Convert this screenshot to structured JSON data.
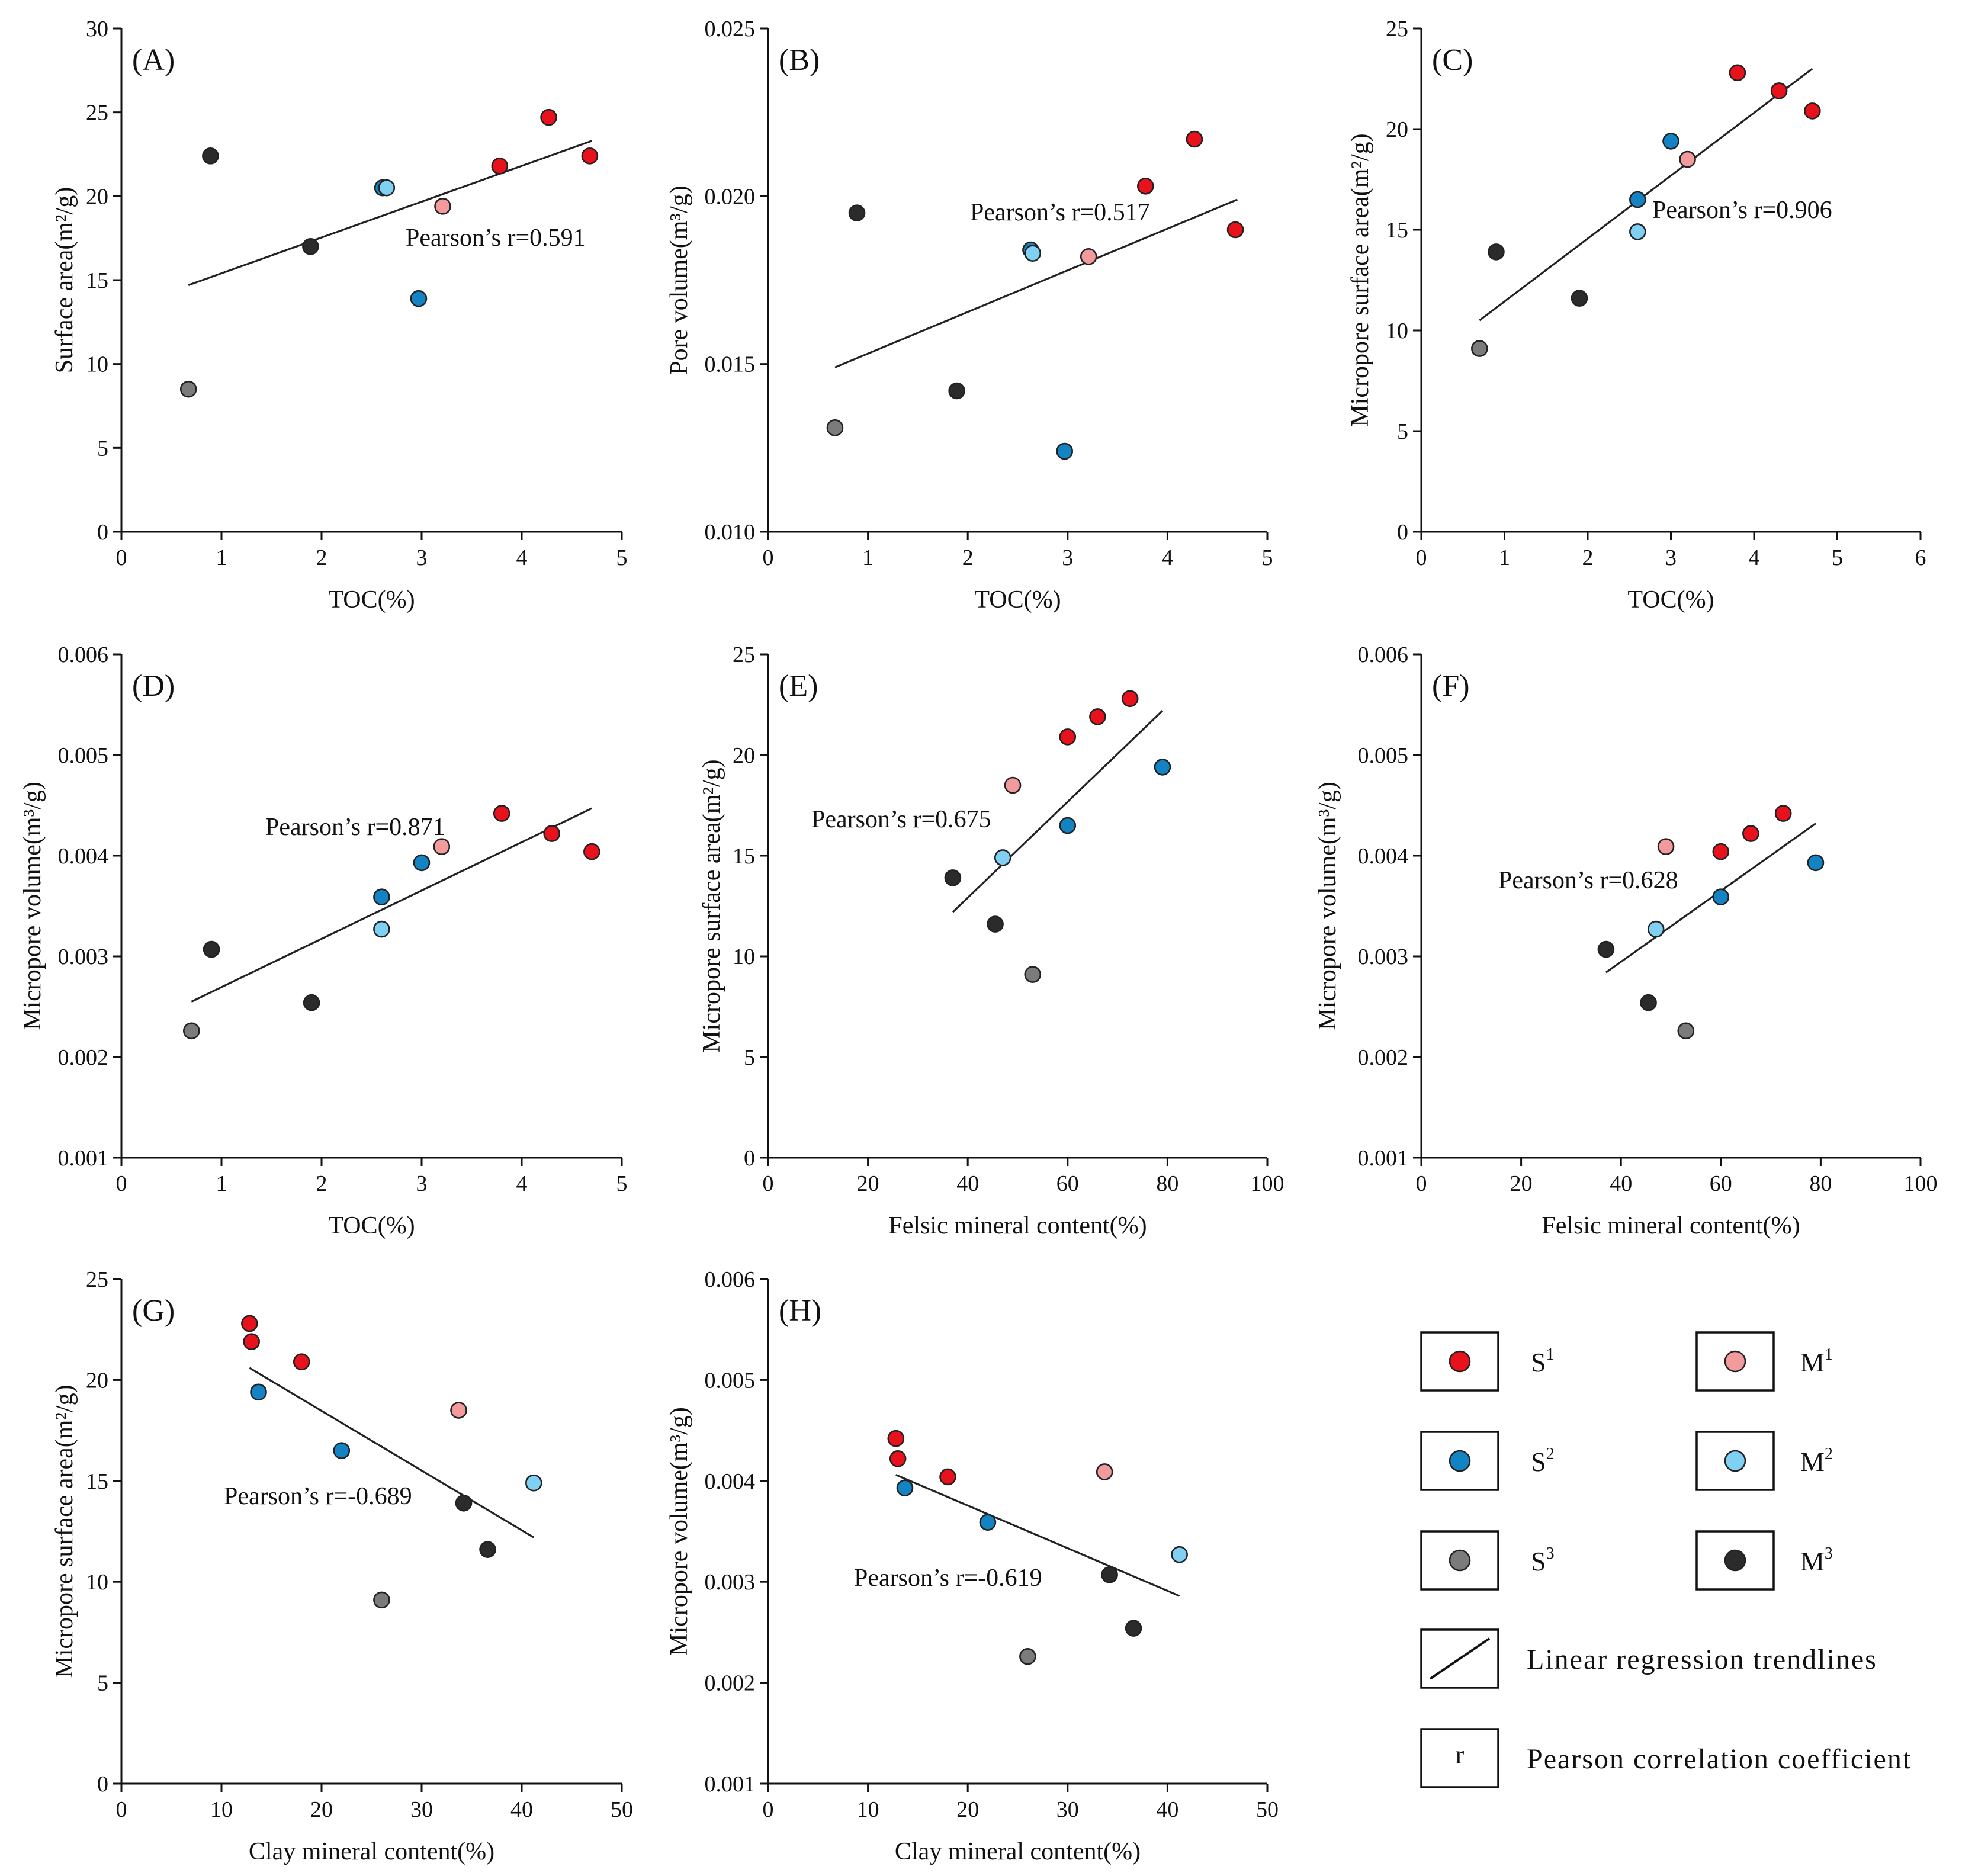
{
  "colors": {
    "S1": "#e8121c",
    "S2": "#1383c4",
    "S3": "#7b7b7b",
    "M1": "#f39a9c",
    "M2": "#7fd0f2",
    "M3": "#2b2b2b"
  },
  "legend": {
    "items": [
      {
        "group": "S1",
        "base": "S",
        "sup": "1"
      },
      {
        "group": "M1",
        "base": "M",
        "sup": "1"
      },
      {
        "group": "S2",
        "base": "S",
        "sup": "2"
      },
      {
        "group": "M2",
        "base": "M",
        "sup": "2"
      },
      {
        "group": "S3",
        "base": "S",
        "sup": "3"
      },
      {
        "group": "M3",
        "base": "M",
        "sup": "3"
      }
    ],
    "trendline_label": "Linear regression trendlines",
    "r_symbol": "r",
    "r_label": "Pearson correlation coefficient"
  },
  "chart_data": [
    {
      "panel": "(A)",
      "type": "scatter",
      "xlabel": "TOC(%)",
      "ylabel": "Surface area(m²/g)",
      "xlim": [
        0,
        5
      ],
      "ylim": [
        0,
        30
      ],
      "xticks": [
        "0",
        "1",
        "2",
        "3",
        "4",
        "5"
      ],
      "yticks": [
        "0",
        "5",
        "10",
        "15",
        "20",
        "25",
        "30"
      ],
      "annotation": "Pearson’s r=0.591",
      "trendline": [
        [
          0.67,
          14.7
        ],
        [
          4.7,
          23.3
        ]
      ],
      "points": [
        {
          "x": 0.67,
          "y": 8.5,
          "group": "S3"
        },
        {
          "x": 0.89,
          "y": 22.4,
          "group": "M3"
        },
        {
          "x": 1.89,
          "y": 17.0,
          "group": "M3"
        },
        {
          "x": 2.61,
          "y": 20.5,
          "group": "S2"
        },
        {
          "x": 2.65,
          "y": 20.5,
          "group": "M2"
        },
        {
          "x": 2.97,
          "y": 13.9,
          "group": "S2"
        },
        {
          "x": 3.21,
          "y": 19.4,
          "group": "M1"
        },
        {
          "x": 3.78,
          "y": 21.8,
          "group": "S1"
        },
        {
          "x": 4.27,
          "y": 24.7,
          "group": "S1"
        },
        {
          "x": 4.68,
          "y": 22.4,
          "group": "S1"
        }
      ]
    },
    {
      "panel": "(B)",
      "type": "scatter",
      "xlabel": "TOC(%)",
      "ylabel": "Pore volume(m³/g)",
      "xlim": [
        0,
        5
      ],
      "ylim": [
        0.01,
        0.025
      ],
      "xticks": [
        "0",
        "1",
        "2",
        "3",
        "4",
        "5"
      ],
      "yticks": [
        "0.010",
        "0.015",
        "0.020",
        "0.025"
      ],
      "annotation": "Pearson’s r=0.517",
      "trendline": [
        [
          0.67,
          0.0149
        ],
        [
          4.7,
          0.0199
        ]
      ],
      "points": [
        {
          "x": 0.67,
          "y": 0.0131,
          "group": "S3"
        },
        {
          "x": 0.89,
          "y": 0.0195,
          "group": "M3"
        },
        {
          "x": 1.89,
          "y": 0.0142,
          "group": "M3"
        },
        {
          "x": 2.63,
          "y": 0.0184,
          "group": "S2"
        },
        {
          "x": 2.65,
          "y": 0.0183,
          "group": "M2"
        },
        {
          "x": 2.97,
          "y": 0.0124,
          "group": "S2"
        },
        {
          "x": 3.21,
          "y": 0.0182,
          "group": "M1"
        },
        {
          "x": 3.78,
          "y": 0.0203,
          "group": "S1"
        },
        {
          "x": 4.27,
          "y": 0.0217,
          "group": "S1"
        },
        {
          "x": 4.68,
          "y": 0.019,
          "group": "S1"
        }
      ]
    },
    {
      "panel": "(C)",
      "type": "scatter",
      "xlabel": "TOC(%)",
      "ylabel": "Micropore surface area(m²/g)",
      "xlim": [
        0,
        6
      ],
      "ylim": [
        0,
        25
      ],
      "xticks": [
        "0",
        "1",
        "2",
        "3",
        "4",
        "5",
        "6"
      ],
      "yticks": [
        "0",
        "5",
        "10",
        "15",
        "20",
        "25"
      ],
      "annotation": "Pearson’s r=0.906",
      "trendline": [
        [
          0.7,
          10.5
        ],
        [
          4.7,
          23.0
        ]
      ],
      "points": [
        {
          "x": 0.7,
          "y": 9.1,
          "group": "S3"
        },
        {
          "x": 0.9,
          "y": 13.9,
          "group": "M3"
        },
        {
          "x": 1.9,
          "y": 11.6,
          "group": "M3"
        },
        {
          "x": 2.6,
          "y": 16.5,
          "group": "S2"
        },
        {
          "x": 2.6,
          "y": 14.9,
          "group": "M2"
        },
        {
          "x": 3.0,
          "y": 19.4,
          "group": "S2"
        },
        {
          "x": 3.2,
          "y": 18.5,
          "group": "M1"
        },
        {
          "x": 3.8,
          "y": 22.8,
          "group": "S1"
        },
        {
          "x": 4.3,
          "y": 21.9,
          "group": "S1"
        },
        {
          "x": 4.7,
          "y": 20.9,
          "group": "S1"
        }
      ]
    },
    {
      "panel": "(D)",
      "type": "scatter",
      "xlabel": "TOC(%)",
      "ylabel": "Micropore volume(m³/g)",
      "xlim": [
        0,
        5
      ],
      "ylim": [
        0.001,
        0.006
      ],
      "xticks": [
        "0",
        "1",
        "2",
        "3",
        "4",
        "5"
      ],
      "yticks": [
        "0.001",
        "0.002",
        "0.003",
        "0.004",
        "0.005",
        "0.006"
      ],
      "annotation": "Pearson’s r=0.871",
      "trendline": [
        [
          0.7,
          0.00255
        ],
        [
          4.7,
          0.00447
        ]
      ],
      "points": [
        {
          "x": 0.7,
          "y": 0.00226,
          "group": "S3"
        },
        {
          "x": 0.9,
          "y": 0.00307,
          "group": "M3"
        },
        {
          "x": 1.9,
          "y": 0.00254,
          "group": "M3"
        },
        {
          "x": 2.6,
          "y": 0.00359,
          "group": "S2"
        },
        {
          "x": 2.6,
          "y": 0.00327,
          "group": "M2"
        },
        {
          "x": 3.0,
          "y": 0.00393,
          "group": "S2"
        },
        {
          "x": 3.2,
          "y": 0.00409,
          "group": "M1"
        },
        {
          "x": 3.8,
          "y": 0.00442,
          "group": "S1"
        },
        {
          "x": 4.3,
          "y": 0.00422,
          "group": "S1"
        },
        {
          "x": 4.7,
          "y": 0.00404,
          "group": "S1"
        }
      ]
    },
    {
      "panel": "(E)",
      "type": "scatter",
      "xlabel": "Felsic mineral content(%)",
      "ylabel": "Micropore surface area(m²/g)",
      "xlim": [
        0,
        100
      ],
      "ylim": [
        0,
        25
      ],
      "xticks": [
        "0",
        "20",
        "40",
        "60",
        "80",
        "100"
      ],
      "yticks": [
        "0",
        "5",
        "10",
        "15",
        "20",
        "25"
      ],
      "annotation": "Pearson’s r=0.675",
      "trendline": [
        [
          37,
          12.2
        ],
        [
          79,
          22.2
        ]
      ],
      "points": [
        {
          "x": 37.0,
          "y": 13.9,
          "group": "M3"
        },
        {
          "x": 45.5,
          "y": 11.6,
          "group": "M3"
        },
        {
          "x": 47.0,
          "y": 14.9,
          "group": "M2"
        },
        {
          "x": 49.0,
          "y": 18.5,
          "group": "M1"
        },
        {
          "x": 53.0,
          "y": 9.1,
          "group": "S3"
        },
        {
          "x": 60.0,
          "y": 16.5,
          "group": "S2"
        },
        {
          "x": 60.0,
          "y": 20.9,
          "group": "S1"
        },
        {
          "x": 66.0,
          "y": 21.9,
          "group": "S1"
        },
        {
          "x": 72.5,
          "y": 22.8,
          "group": "S1"
        },
        {
          "x": 79.0,
          "y": 19.4,
          "group": "S2"
        }
      ]
    },
    {
      "panel": "(F)",
      "type": "scatter",
      "xlabel": "Felsic mineral content(%)",
      "ylabel": "Micropore volume(m³/g)",
      "xlim": [
        0,
        100
      ],
      "ylim": [
        0.001,
        0.006
      ],
      "xticks": [
        "0",
        "20",
        "40",
        "60",
        "80",
        "100"
      ],
      "yticks": [
        "0.001",
        "0.002",
        "0.003",
        "0.004",
        "0.005",
        "0.006"
      ],
      "annotation": "Pearson’s r=0.628",
      "trendline": [
        [
          37,
          0.00284
        ],
        [
          79,
          0.00432
        ]
      ],
      "points": [
        {
          "x": 37.0,
          "y": 0.00307,
          "group": "M3"
        },
        {
          "x": 45.5,
          "y": 0.00254,
          "group": "M3"
        },
        {
          "x": 47.0,
          "y": 0.00327,
          "group": "M2"
        },
        {
          "x": 49.0,
          "y": 0.00409,
          "group": "M1"
        },
        {
          "x": 53.0,
          "y": 0.00226,
          "group": "S3"
        },
        {
          "x": 60.0,
          "y": 0.00359,
          "group": "S2"
        },
        {
          "x": 60.0,
          "y": 0.00404,
          "group": "S1"
        },
        {
          "x": 66.0,
          "y": 0.00422,
          "group": "S1"
        },
        {
          "x": 72.5,
          "y": 0.00442,
          "group": "S1"
        },
        {
          "x": 79.0,
          "y": 0.00393,
          "group": "S2"
        }
      ]
    },
    {
      "panel": "(G)",
      "type": "scatter",
      "xlabel": "Clay mineral content(%)",
      "ylabel": "Micropore surface area(m²/g)",
      "xlim": [
        0,
        50
      ],
      "ylim": [
        0,
        25
      ],
      "xticks": [
        "0",
        "10",
        "20",
        "30",
        "40",
        "50"
      ],
      "yticks": [
        "0",
        "5",
        "10",
        "15",
        "20",
        "25"
      ],
      "annotation": "Pearson’s r=-0.689",
      "trendline": [
        [
          12.8,
          20.6
        ],
        [
          41.2,
          12.2
        ]
      ],
      "points": [
        {
          "x": 12.8,
          "y": 22.8,
          "group": "S1"
        },
        {
          "x": 13.0,
          "y": 21.9,
          "group": "S1"
        },
        {
          "x": 13.7,
          "y": 19.4,
          "group": "S2"
        },
        {
          "x": 18.0,
          "y": 20.9,
          "group": "S1"
        },
        {
          "x": 22.0,
          "y": 16.5,
          "group": "S2"
        },
        {
          "x": 26.0,
          "y": 9.1,
          "group": "S3"
        },
        {
          "x": 33.7,
          "y": 18.5,
          "group": "M1"
        },
        {
          "x": 34.2,
          "y": 13.9,
          "group": "M3"
        },
        {
          "x": 36.6,
          "y": 11.6,
          "group": "M3"
        },
        {
          "x": 41.2,
          "y": 14.9,
          "group": "M2"
        }
      ]
    },
    {
      "panel": "(H)",
      "type": "scatter",
      "xlabel": "Clay mineral content(%)",
      "ylabel": "Micropore volume(m³/g)",
      "xlim": [
        0,
        50
      ],
      "ylim": [
        0.001,
        0.006
      ],
      "xticks": [
        "0",
        "10",
        "20",
        "30",
        "40",
        "50"
      ],
      "yticks": [
        "0.001",
        "0.002",
        "0.003",
        "0.004",
        "0.005",
        "0.006"
      ],
      "annotation": "Pearson’s r=-0.619",
      "trendline": [
        [
          12.8,
          0.00406
        ],
        [
          41.2,
          0.00286
        ]
      ],
      "points": [
        {
          "x": 12.8,
          "y": 0.00442,
          "group": "S1"
        },
        {
          "x": 13.0,
          "y": 0.00422,
          "group": "S1"
        },
        {
          "x": 13.7,
          "y": 0.00393,
          "group": "S2"
        },
        {
          "x": 18.0,
          "y": 0.00404,
          "group": "S1"
        },
        {
          "x": 22.0,
          "y": 0.00359,
          "group": "S2"
        },
        {
          "x": 26.0,
          "y": 0.00226,
          "group": "S3"
        },
        {
          "x": 33.7,
          "y": 0.00409,
          "group": "M1"
        },
        {
          "x": 34.2,
          "y": 0.00307,
          "group": "M3"
        },
        {
          "x": 36.6,
          "y": 0.00254,
          "group": "M3"
        },
        {
          "x": 41.2,
          "y": 0.00327,
          "group": "M2"
        }
      ]
    }
  ]
}
